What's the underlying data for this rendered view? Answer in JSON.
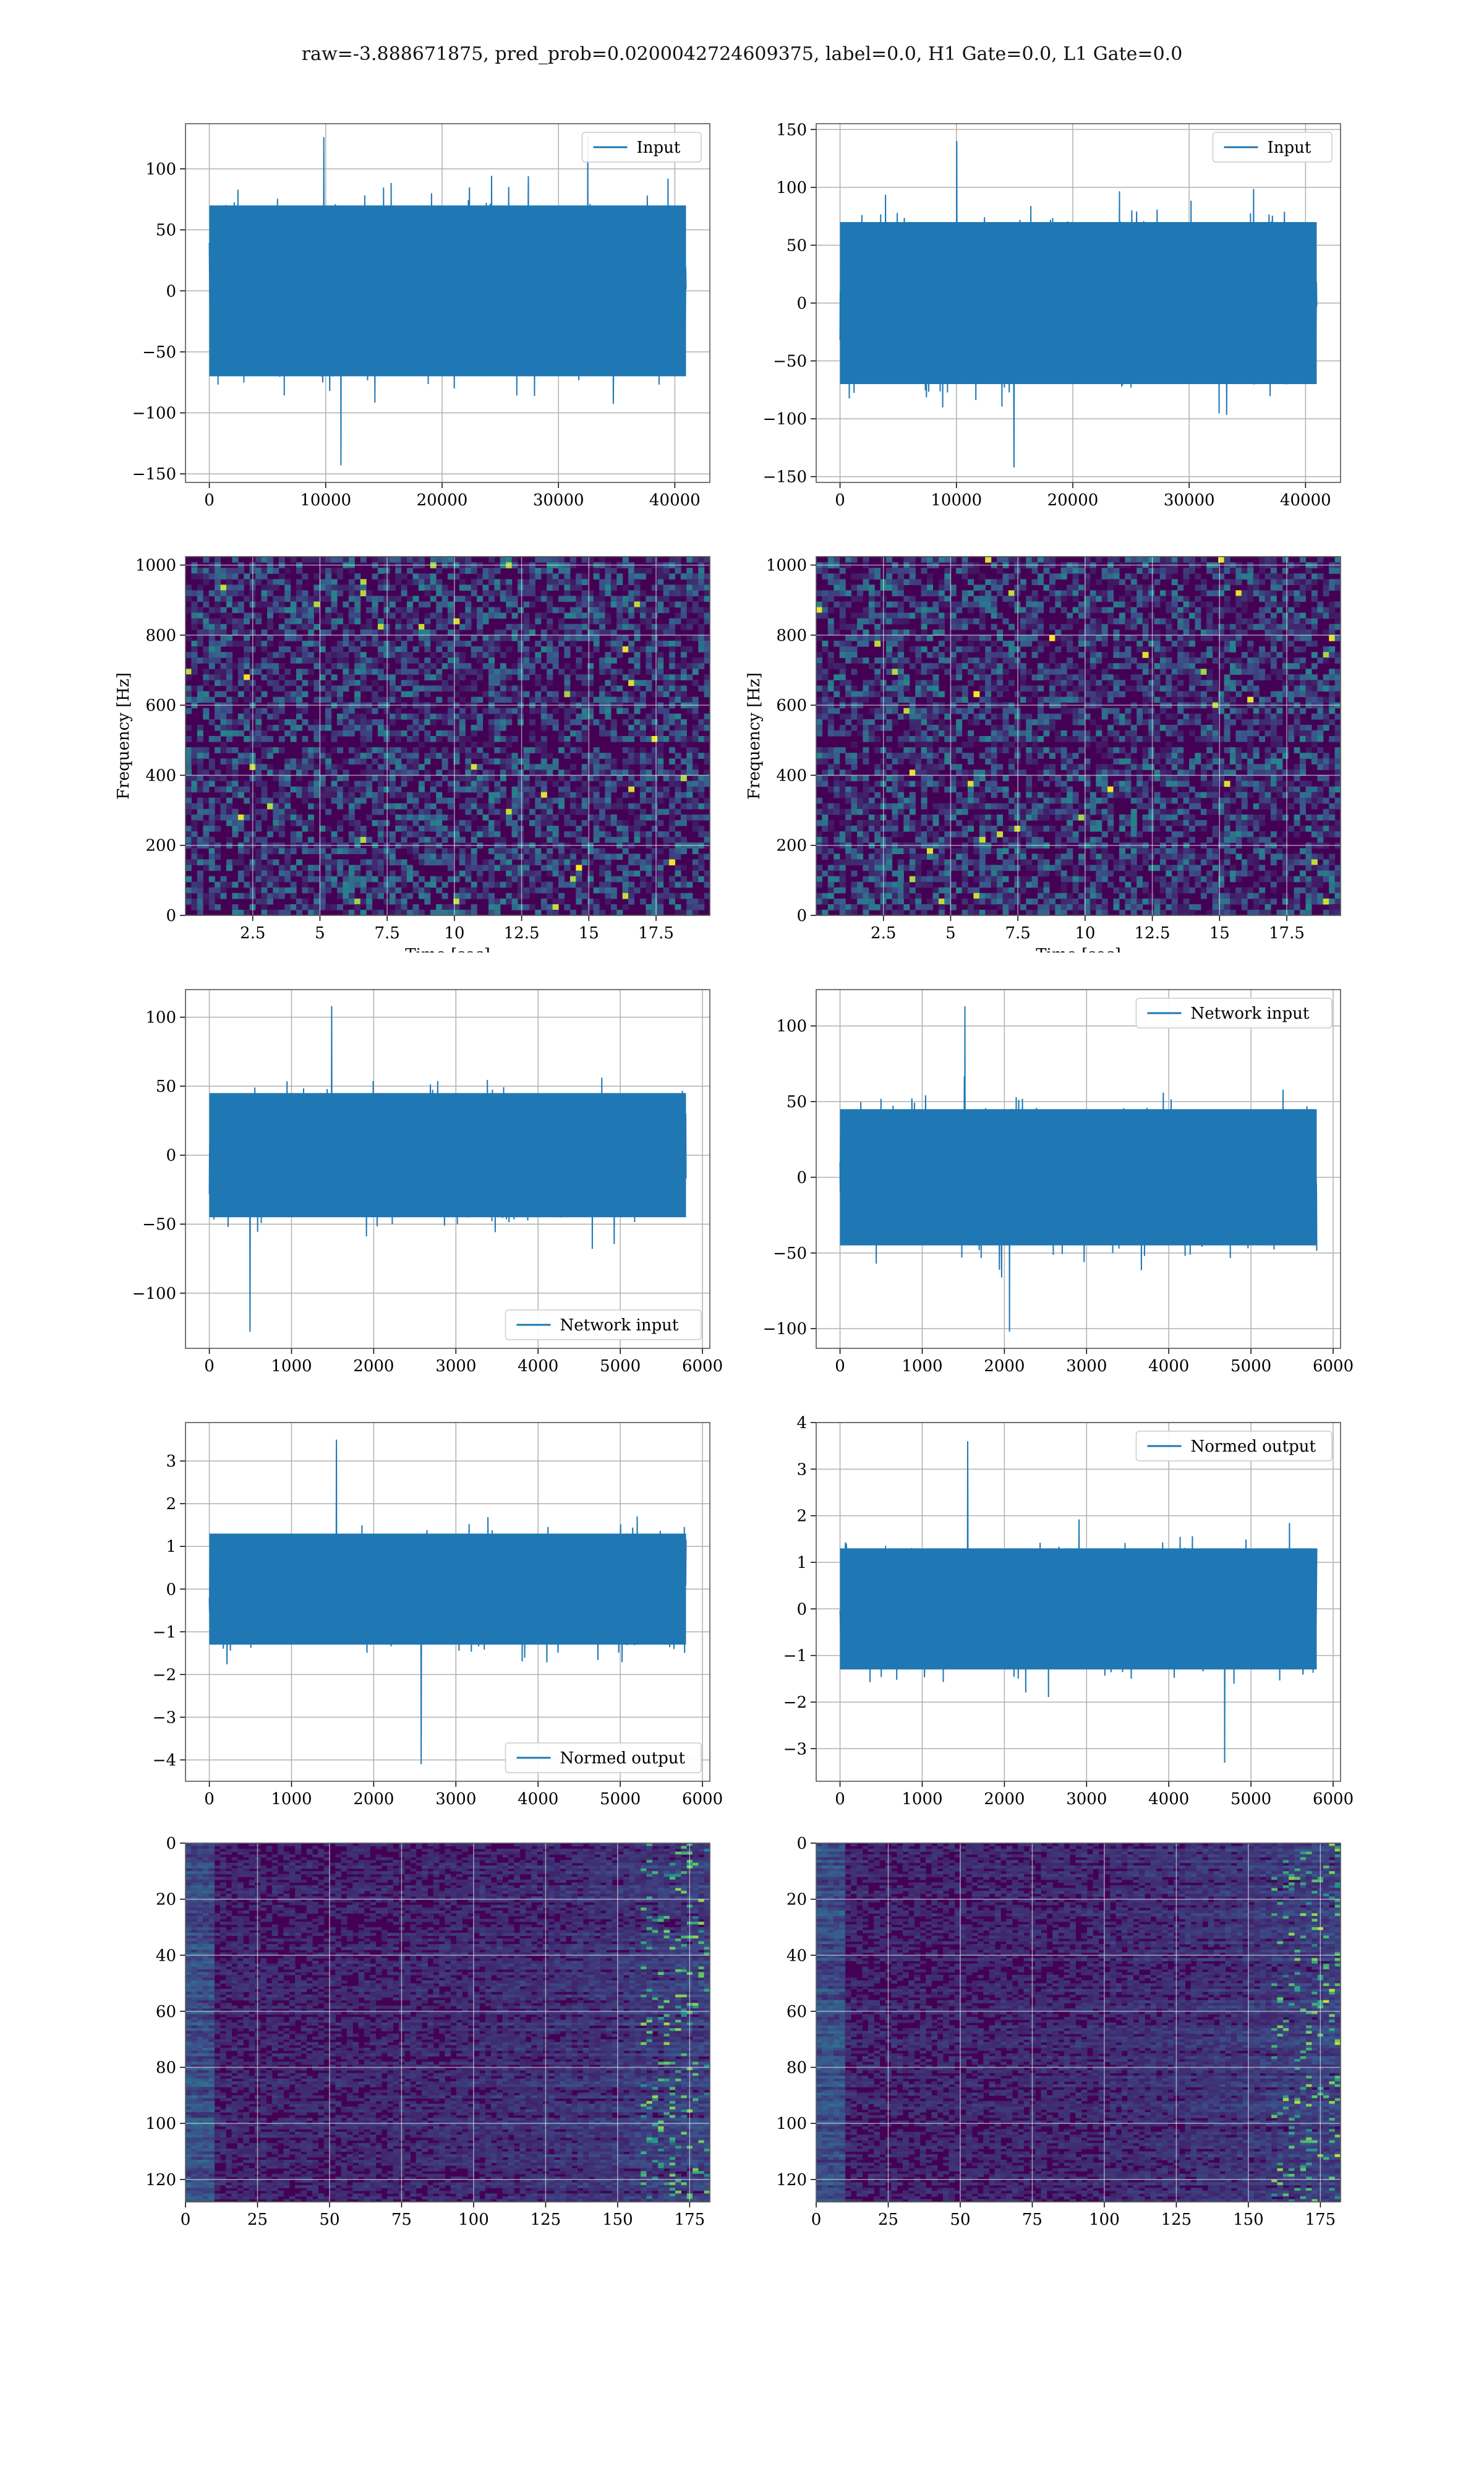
{
  "figure": {
    "title": "raw=-3.888671875, pred_prob=0.0200042724609375, label=0.0, H1 Gate=0.0, L1 Gate=0.0",
    "colors": {
      "line": "#1f77b4",
      "viridis_dark": "#440154",
      "viridis_mid": "#21918c",
      "viridis_bright": "#fde725"
    }
  },
  "chart_data": [
    {
      "id": "input-left",
      "type": "line",
      "series": [
        {
          "name": "Input",
          "x_range": [
            0,
            40960
          ],
          "amplitude_range": [
            -143,
            126
          ],
          "envelope": "noise_band",
          "band": [
            -70,
            70
          ]
        }
      ],
      "xlim": [
        -2048,
        43008
      ],
      "ylim": [
        -157,
        137
      ],
      "xticks": [
        0,
        10000,
        20000,
        30000,
        40000
      ],
      "yticks": [
        -150,
        -100,
        -50,
        0,
        50,
        100
      ],
      "legend": "upper right",
      "grid": true
    },
    {
      "id": "input-right",
      "type": "line",
      "series": [
        {
          "name": "Input",
          "x_range": [
            0,
            40960
          ],
          "amplitude_range": [
            -142,
            140
          ],
          "envelope": "noise_band",
          "band": [
            -70,
            70
          ]
        }
      ],
      "xlim": [
        -2048,
        43008
      ],
      "ylim": [
        -155,
        155
      ],
      "xticks": [
        0,
        10000,
        20000,
        30000,
        40000
      ],
      "yticks": [
        -150,
        -100,
        -50,
        0,
        50,
        100,
        150
      ],
      "legend": "upper right",
      "grid": true
    },
    {
      "id": "spectrogram-left",
      "type": "heatmap",
      "xlabel": "Time [sec]",
      "ylabel": "Frequency [Hz]",
      "xlim": [
        0,
        19.5
      ],
      "ylim": [
        0,
        1024
      ],
      "xticks": [
        2.5,
        5.0,
        7.5,
        10.0,
        12.5,
        15.0,
        17.5
      ],
      "yticks": [
        0,
        200,
        400,
        600,
        800,
        1000
      ],
      "colormap": "viridis",
      "grid": true
    },
    {
      "id": "spectrogram-right",
      "type": "heatmap",
      "xlabel": "Time [sec]",
      "ylabel": "Frequency [Hz]",
      "xlim": [
        0,
        19.5
      ],
      "ylim": [
        0,
        1024
      ],
      "xticks": [
        2.5,
        5.0,
        7.5,
        10.0,
        12.5,
        15.0,
        17.5
      ],
      "yticks": [
        0,
        200,
        400,
        600,
        800,
        1000
      ],
      "colormap": "viridis",
      "grid": true
    },
    {
      "id": "network-left",
      "type": "line",
      "series": [
        {
          "name": "Network input",
          "x_range": [
            0,
            5800
          ],
          "amplitude_range": [
            -128,
            108
          ],
          "envelope": "noise_band",
          "band": [
            -45,
            45
          ]
        }
      ],
      "xlim": [
        -290,
        6090
      ],
      "ylim": [
        -140,
        120
      ],
      "xticks": [
        0,
        1000,
        2000,
        3000,
        4000,
        5000,
        6000
      ],
      "yticks": [
        -100,
        -50,
        0,
        50,
        100
      ],
      "legend": "lower right",
      "grid": true
    },
    {
      "id": "network-right",
      "type": "line",
      "series": [
        {
          "name": "Network input",
          "x_range": [
            0,
            5800
          ],
          "amplitude_range": [
            -102,
            113
          ],
          "envelope": "noise_band",
          "band": [
            -45,
            45
          ]
        }
      ],
      "xlim": [
        -290,
        6090
      ],
      "ylim": [
        -113,
        124
      ],
      "xticks": [
        0,
        1000,
        2000,
        3000,
        4000,
        5000,
        6000
      ],
      "yticks": [
        -100,
        -50,
        0,
        50,
        100
      ],
      "legend": "upper right",
      "grid": true
    },
    {
      "id": "normed-left",
      "type": "line",
      "series": [
        {
          "name": "Normed output",
          "x_range": [
            0,
            5800
          ],
          "amplitude_range": [
            -4.1,
            3.5
          ],
          "envelope": "noise_band",
          "band": [
            -1.3,
            1.3
          ]
        }
      ],
      "xlim": [
        -290,
        6090
      ],
      "ylim": [
        -4.5,
        3.9
      ],
      "xticks": [
        0,
        1000,
        2000,
        3000,
        4000,
        5000,
        6000
      ],
      "yticks": [
        -4,
        -3,
        -2,
        -1,
        0,
        1,
        2,
        3
      ],
      "legend": "lower right",
      "grid": true
    },
    {
      "id": "normed-right",
      "type": "line",
      "series": [
        {
          "name": "Normed output",
          "x_range": [
            0,
            5800
          ],
          "amplitude_range": [
            -3.3,
            3.6
          ],
          "envelope": "noise_band",
          "band": [
            -1.3,
            1.3
          ]
        }
      ],
      "xlim": [
        -290,
        6090
      ],
      "ylim": [
        -3.7,
        4.0
      ],
      "xticks": [
        0,
        1000,
        2000,
        3000,
        4000,
        5000,
        6000
      ],
      "yticks": [
        -3,
        -2,
        -1,
        0,
        1,
        2,
        3,
        4
      ],
      "legend": "upper right",
      "grid": true
    },
    {
      "id": "features-left",
      "type": "heatmap",
      "xlim": [
        0,
        182
      ],
      "ylim": [
        0,
        128
      ],
      "y_inverted": true,
      "xticks": [
        0,
        25,
        50,
        75,
        100,
        125,
        150,
        175
      ],
      "yticks": [
        0,
        20,
        40,
        60,
        80,
        100,
        120
      ],
      "colormap": "viridis",
      "grid": true
    },
    {
      "id": "features-right",
      "type": "heatmap",
      "xlim": [
        0,
        182
      ],
      "ylim": [
        0,
        128
      ],
      "y_inverted": true,
      "xticks": [
        0,
        25,
        50,
        75,
        100,
        125,
        150,
        175
      ],
      "yticks": [
        0,
        20,
        40,
        60,
        80,
        100,
        120
      ],
      "colormap": "viridis",
      "grid": true
    }
  ]
}
